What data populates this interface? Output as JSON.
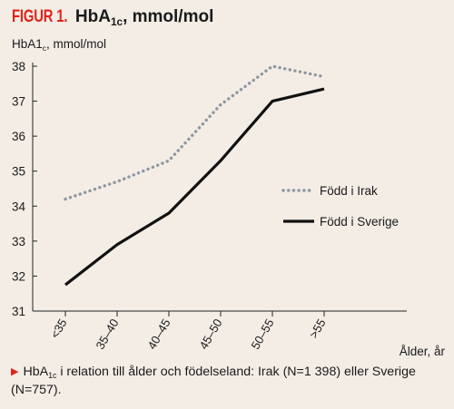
{
  "figure": {
    "label": "FIGUR 1.",
    "title_main": "HbA",
    "title_sub": "1c",
    "title_rest": ", mmol/mol"
  },
  "y_unit": {
    "main": "HbA1",
    "sub": "c",
    "rest": ", mmol/mol"
  },
  "caption": {
    "main": "HbA",
    "sub": "1c",
    "rest": " i relation till ålder och födelseland: Irak (N=1 398) eller Sverige (N=757)."
  },
  "colors": {
    "background": "#f3ede6",
    "accent": "#e2231a",
    "irak_series": "#8e97a0",
    "sverige_series": "#111111"
  },
  "chart_data": {
    "type": "line",
    "categories": [
      "<35",
      "35–40",
      "40–45",
      "45–50",
      "50–55",
      ">55"
    ],
    "xlabel": "Ålder, år",
    "ylabel": "HbA1c, mmol/mol",
    "ylim": [
      31,
      38
    ],
    "yticks": [
      31,
      32,
      33,
      34,
      35,
      36,
      37,
      38
    ],
    "grid": false,
    "legend_position": "right",
    "series": [
      {
        "name": "Född i Irak",
        "style": "dotted",
        "values": [
          34.2,
          34.7,
          35.3,
          36.9,
          38.0,
          37.7
        ]
      },
      {
        "name": "Född i Sverige",
        "style": "solid",
        "values": [
          31.75,
          32.9,
          33.8,
          35.3,
          37.0,
          37.35
        ]
      }
    ]
  }
}
